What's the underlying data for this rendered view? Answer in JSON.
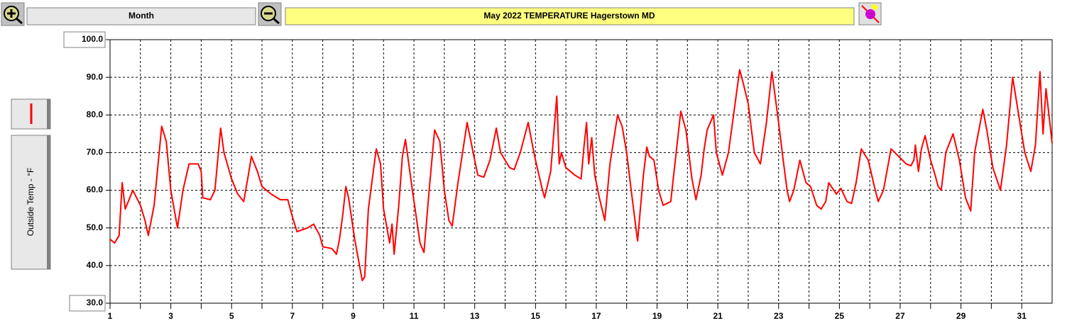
{
  "chart_data": {
    "type": "line",
    "title": "May  2022  TEMPERATURE  Hagerstown MD",
    "period": "Month",
    "series": [
      {
        "name": "Outside Temp - °F",
        "color": "#ff0000",
        "x": [
          1,
          1.15,
          1.3,
          1.4,
          1.5,
          1.75,
          2,
          2.15,
          2.26,
          2.45,
          2.7,
          2.85,
          3,
          3.22,
          3.4,
          3.6,
          3.9,
          4,
          4.05,
          4.3,
          4.45,
          4.64,
          4.75,
          5,
          5.2,
          5.4,
          5.55,
          5.65,
          5.85,
          6,
          6.3,
          6.6,
          6.85,
          7,
          7.15,
          7.5,
          7.7,
          7.9,
          8,
          8.3,
          8.45,
          8.55,
          8.65,
          8.76,
          8.85,
          9.05,
          9.3,
          9.38,
          9.5,
          9.76,
          9.9,
          10,
          10.2,
          10.28,
          10.35,
          10.5,
          10.62,
          10.72,
          10.95,
          11.2,
          11.33,
          11.5,
          11.68,
          11.85,
          12,
          12.15,
          12.26,
          12.45,
          12.75,
          12.95,
          13.1,
          13.3,
          13.5,
          13.71,
          13.85,
          14,
          14.15,
          14.3,
          14.5,
          14.76,
          14.9,
          15,
          15.2,
          15.3,
          15.5,
          15.7,
          15.78,
          15.85,
          16,
          16.3,
          16.5,
          16.6,
          16.68,
          16.75,
          16.85,
          16.95,
          17.1,
          17.28,
          17.45,
          17.7,
          17.85,
          18,
          18.15,
          18.36,
          18.45,
          18.55,
          18.66,
          18.75,
          18.9,
          19.05,
          19.2,
          19.45,
          19.78,
          19.95,
          20.15,
          20.28,
          20.45,
          20.55,
          20.65,
          20.86,
          20.95,
          21.15,
          21.35,
          21.55,
          21.72,
          21.85,
          22,
          22.2,
          22.4,
          22.6,
          22.78,
          23,
          23.15,
          23.28,
          23.36,
          23.5,
          23.7,
          23.9,
          24.05,
          24.25,
          24.4,
          24.55,
          24.65,
          24.9,
          25.05,
          25.25,
          25.4,
          25.55,
          25.72,
          25.95,
          26.15,
          26.28,
          26.45,
          26.7,
          26.95,
          27.2,
          27.35,
          27.45,
          27.5,
          27.6,
          27.7,
          27.82,
          28,
          28.15,
          28.25,
          28.35,
          28.5,
          28.74,
          28.95,
          29.15,
          29.32,
          29.45,
          29.72,
          29.85,
          30.05,
          30.3,
          30.5,
          30.7,
          30.9,
          31.1,
          31.3,
          31.45,
          31.6,
          31.7,
          31.8,
          32
        ],
        "values": [
          47,
          46,
          48,
          62,
          55,
          60,
          56,
          52,
          48,
          56,
          77,
          73,
          60,
          50,
          60,
          67,
          67,
          65,
          58,
          57.5,
          60,
          76.5,
          70,
          63,
          59,
          57,
          64,
          69,
          65,
          61,
          59,
          57.5,
          57.5,
          53,
          49,
          50,
          51,
          48,
          45,
          44.5,
          43,
          47,
          53,
          61,
          58,
          47,
          36,
          37,
          55,
          71,
          67,
          55,
          46,
          51,
          43,
          56,
          69,
          73.5,
          60,
          46,
          43.5,
          60,
          76,
          73,
          60,
          52,
          50.5,
          62,
          78,
          70,
          64,
          63.5,
          68,
          76.5,
          70,
          68,
          66,
          65.5,
          70,
          78,
          72,
          68,
          61,
          58,
          65,
          85,
          67,
          70,
          66,
          64,
          63,
          72,
          78,
          67,
          74,
          64,
          58,
          52,
          67,
          80,
          77,
          70,
          60,
          46.5,
          55,
          64,
          71.5,
          69,
          68,
          60,
          56,
          57,
          81,
          76,
          63,
          57.5,
          64,
          71,
          76,
          80,
          70,
          64,
          70,
          82,
          92,
          88,
          83,
          70,
          67,
          78,
          91.5,
          78,
          68,
          60,
          57,
          60,
          68,
          62,
          61,
          56,
          55,
          57,
          62,
          59,
          60.5,
          57,
          56.5,
          62,
          71,
          68,
          61,
          57,
          60,
          71,
          69,
          67,
          66.5,
          68,
          72,
          65,
          71,
          74.5,
          68,
          64,
          61,
          60,
          70,
          75,
          68,
          58,
          54.5,
          70,
          81.5,
          76,
          66,
          60,
          72,
          90,
          80,
          70,
          65,
          72,
          91.5,
          75,
          87,
          72.5
        ]
      }
    ],
    "xlim": [
      1,
      32
    ],
    "xticks": [
      1,
      3,
      5,
      7,
      9,
      11,
      13,
      15,
      17,
      19,
      21,
      23,
      25,
      27,
      29,
      31
    ],
    "xminor_ticks": [
      2,
      4,
      6,
      8,
      10,
      12,
      14,
      16,
      18,
      20,
      22,
      24,
      26,
      28,
      30
    ],
    "ylim": [
      30,
      100
    ],
    "yticks": [
      {
        "value": 30,
        "label": "30.0"
      },
      {
        "value": 40,
        "label": "40.0"
      },
      {
        "value": 50,
        "label": "50.0"
      },
      {
        "value": 60,
        "label": "60.0"
      },
      {
        "value": 70,
        "label": "70.0"
      },
      {
        "value": 80,
        "label": "80.0"
      },
      {
        "value": 90,
        "label": "90.0"
      },
      {
        "value": 100,
        "label": "100.0"
      }
    ],
    "grid": true
  }
}
